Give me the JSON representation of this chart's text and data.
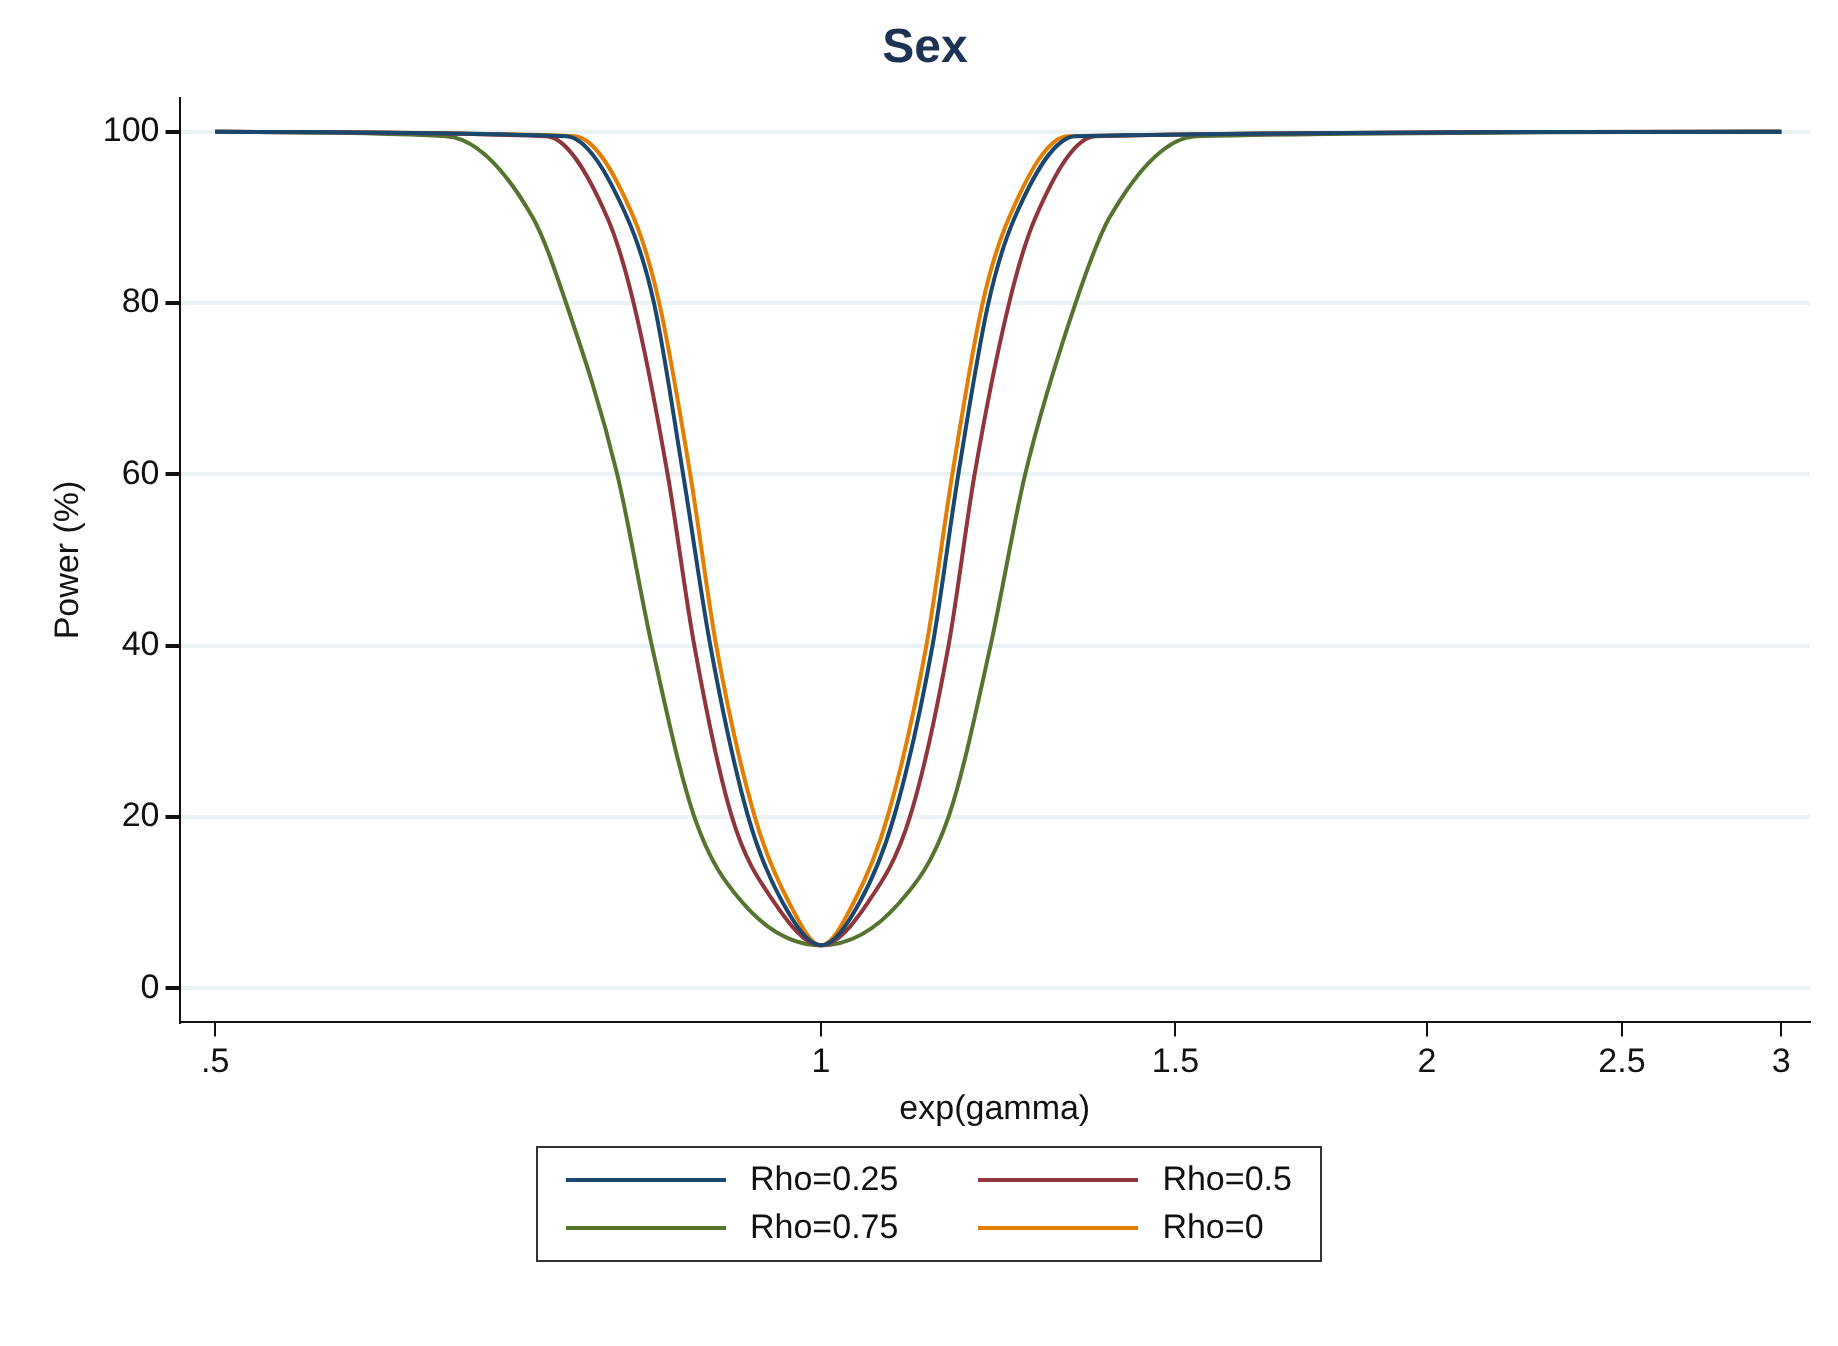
{
  "chart_data": {
    "type": "line",
    "title": "Sex",
    "xlabel": "exp(gamma)",
    "ylabel": "Power (%)",
    "log": "x",
    "xlim": [
      0.48,
      3.1
    ],
    "xticks": [
      {
        "value": 0.5,
        "label": ".5"
      },
      1,
      1.5,
      2,
      2.5,
      3
    ],
    "ylim": [
      -4,
      104
    ],
    "yticks": [
      0,
      20,
      40,
      60,
      80,
      100
    ],
    "grid": "y",
    "legend": "bottom",
    "marker": "none",
    "line_style": "solid",
    "series": [
      {
        "name": "Rho=0.25",
        "color": "#1a476f",
        "x": [
          0.5,
          0.747,
          0.801,
          0.826,
          0.854,
          0.881,
          0.92,
          0.957,
          1,
          1.045,
          1.087,
          1.136,
          1.17,
          1.211,
          1.248,
          1.338,
          3
        ],
        "values": [
          100,
          99.5,
          90,
          80,
          60,
          40,
          20,
          10,
          5,
          10,
          20,
          40,
          60,
          80,
          90,
          99.5,
          100
        ]
      },
      {
        "name": "Rho=0.5",
        "color": "#90353b",
        "x": [
          0.5,
          0.73,
          0.783,
          0.807,
          0.839,
          0.865,
          0.903,
          0.948,
          1,
          1.055,
          1.107,
          1.157,
          1.192,
          1.24,
          1.278,
          1.369,
          3
        ],
        "values": [
          100,
          99.5,
          90,
          80,
          60,
          40,
          20,
          10,
          5,
          10,
          20,
          40,
          60,
          80,
          90,
          99.5,
          100
        ]
      },
      {
        "name": "Rho=0.75",
        "color": "#55752f",
        "x": [
          0.5,
          0.651,
          0.719,
          0.747,
          0.792,
          0.824,
          0.865,
          0.914,
          1,
          1.094,
          1.157,
          1.214,
          1.263,
          1.338,
          1.391,
          1.537,
          3
        ],
        "values": [
          100,
          99.5,
          90,
          80,
          60,
          40,
          20,
          10,
          5,
          10,
          20,
          40,
          60,
          80,
          90,
          99.5,
          100
        ]
      },
      {
        "name": "Rho=0",
        "color": "#e37e00",
        "x": [
          0.5,
          0.754,
          0.807,
          0.831,
          0.861,
          0.887,
          0.927,
          0.964,
          1,
          1.038,
          1.079,
          1.128,
          1.162,
          1.203,
          1.24,
          1.326,
          3
        ],
        "values": [
          100,
          99.5,
          90,
          80,
          60,
          40,
          20,
          10,
          5,
          10,
          20,
          40,
          60,
          80,
          90,
          99.5,
          100
        ]
      }
    ]
  }
}
